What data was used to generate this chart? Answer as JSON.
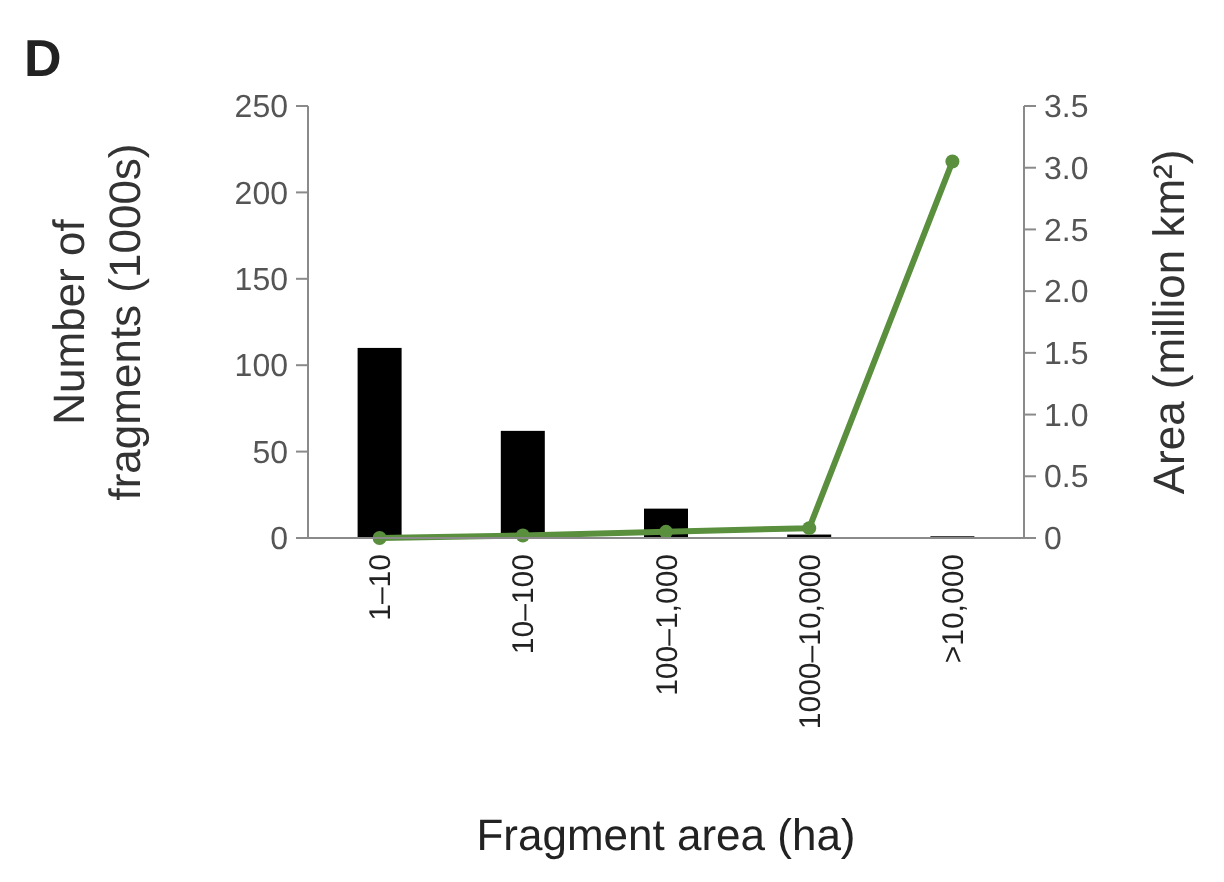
{
  "chart_data": {
    "type": "bar",
    "title": "D",
    "xlabel": "Fragment area (ha)",
    "ylabel": "Number of fragments (1000s)",
    "y2label": "Area (million km²)",
    "categories": [
      "1–10",
      "10–100",
      "100–1,000",
      "1000–10,000",
      ">10,000"
    ],
    "series": [
      {
        "color": "#000000",
        "values": [
          110,
          62,
          17,
          2,
          1
        ]
      },
      {
        "type": "line",
        "axis": "y2",
        "color": "#5a8f3e",
        "values": [
          0,
          0.02,
          0.05,
          0.08,
          3.05
        ]
      }
    ],
    "ylim": [
      0,
      250
    ],
    "yticks": [
      0,
      50,
      100,
      150,
      200,
      250
    ],
    "y2lim": [
      0,
      3.5
    ],
    "y2ticks": [
      {
        "value": 0,
        "label": "0"
      },
      {
        "value": 0.5,
        "label": "0.5"
      },
      {
        "value": 1,
        "label": "1.0"
      },
      {
        "value": 1.5,
        "label": "1.5"
      },
      {
        "value": 2,
        "label": "2.0"
      },
      {
        "value": 2.5,
        "label": "2.5"
      },
      {
        "value": 3,
        "label": "3.0"
      },
      {
        "value": 3.5,
        "label": "3.5"
      }
    ],
    "marker": "circle",
    "grid": false
  }
}
